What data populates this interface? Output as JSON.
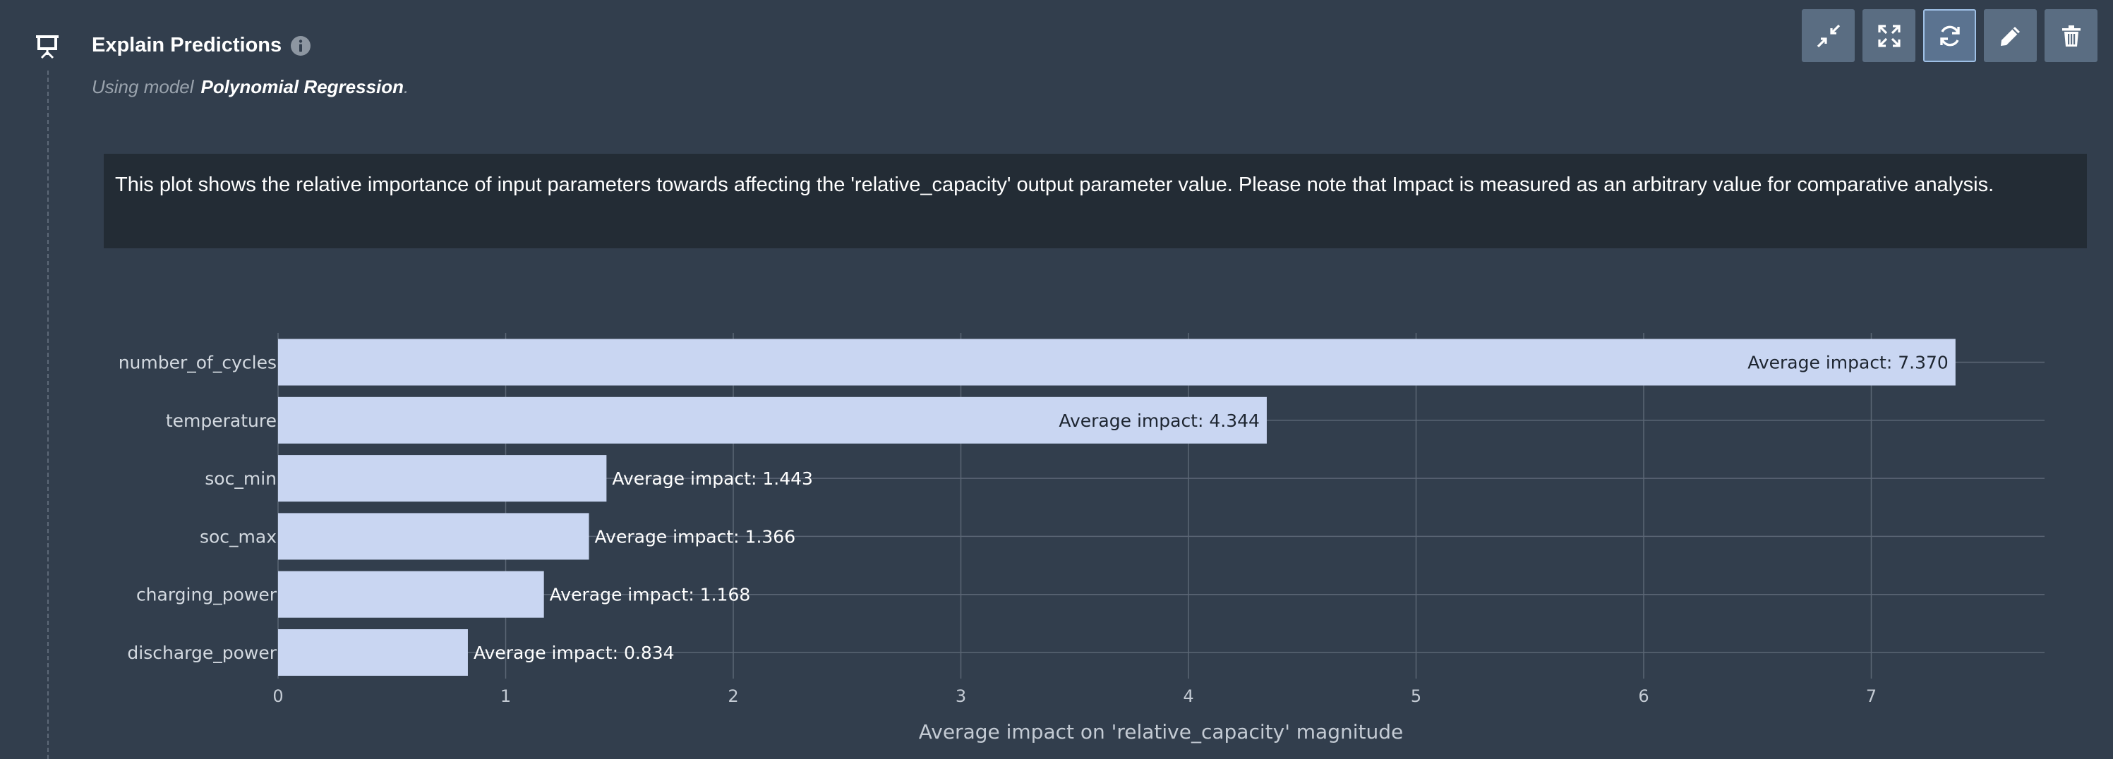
{
  "widget": {
    "title": "Explain Predictions",
    "icon": "presentation-board-icon",
    "info_icon": "info-icon",
    "subtitle_prefix": "Using model",
    "model_name": "Polynomial Regression",
    "subtitle_suffix": "."
  },
  "toolbar": {
    "buttons": [
      {
        "name": "collapse",
        "icon": "collapse-arrows-icon"
      },
      {
        "name": "expand",
        "icon": "expand-arrows-icon"
      },
      {
        "name": "refresh",
        "icon": "refresh-icon",
        "active": true
      },
      {
        "name": "edit",
        "icon": "pencil-icon"
      },
      {
        "name": "delete",
        "icon": "trash-icon"
      }
    ]
  },
  "description": "This plot shows the relative importance of input parameters towards affecting the 'relative_capacity' output parameter value. Please note that Impact is measured as an arbitrary value for comparative analysis.",
  "colors": {
    "background": "#323e4d",
    "bar": "#c9d6f2",
    "button": "#5a6d82",
    "note_background": "#232c35"
  },
  "chart_data": {
    "type": "bar",
    "orientation": "horizontal",
    "categories": [
      "number_of_cycles",
      "temperature",
      "soc_min",
      "soc_max",
      "charging_power",
      "discharge_power"
    ],
    "values": [
      7.37,
      4.344,
      1.443,
      1.366,
      1.168,
      0.834
    ],
    "data_labels": [
      "Average impact: 7.370",
      "Average impact: 4.344",
      "Average impact: 1.443",
      "Average impact: 1.366",
      "Average impact: 1.168",
      "Average impact: 0.834"
    ],
    "xlabel": "Average impact on 'relative_capacity' magnitude",
    "xlim": [
      0,
      7.75
    ],
    "xticks": [
      0,
      1,
      2,
      3,
      4,
      5,
      6,
      7
    ],
    "grid": true
  }
}
